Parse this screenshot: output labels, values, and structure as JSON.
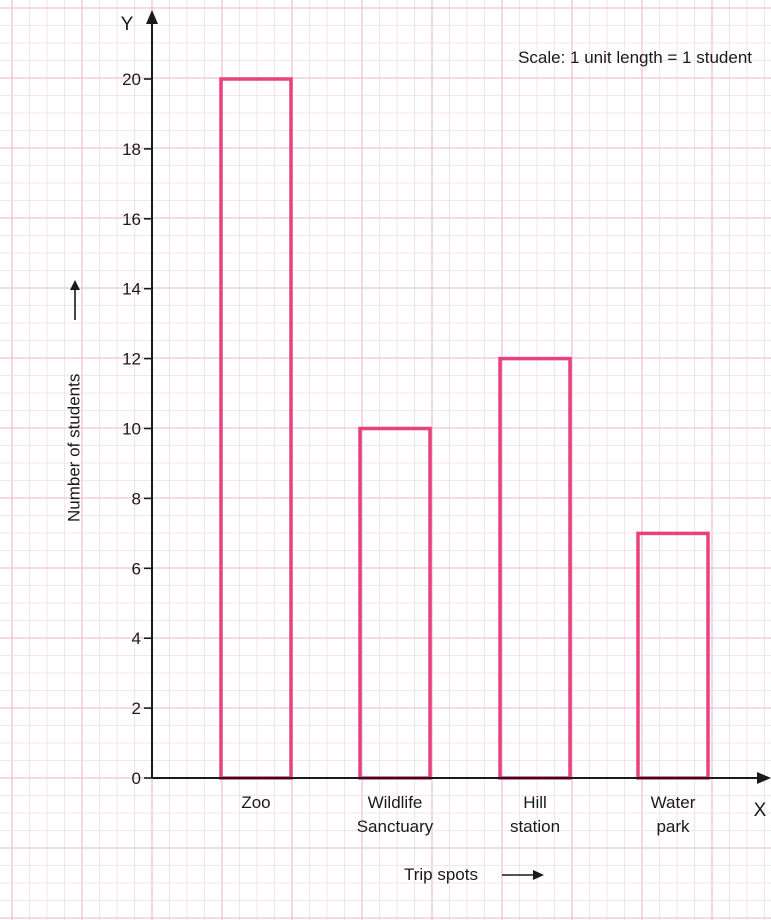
{
  "chart_data": {
    "type": "bar",
    "categories": [
      [
        "Zoo"
      ],
      [
        "Wildlife",
        "Sanctuary"
      ],
      [
        "Hill",
        "station"
      ],
      [
        "Water",
        "park"
      ]
    ],
    "values": [
      20,
      10,
      12,
      7
    ],
    "ylim": [
      0,
      20
    ],
    "yticks": [
      0,
      2,
      4,
      6,
      8,
      10,
      12,
      14,
      16,
      18,
      20
    ],
    "y_axis_letter": "Y",
    "x_axis_letter": "X",
    "ylabel": "Number of students",
    "xlabel": "Trip spots",
    "scale_note": "Scale: 1 unit length = 1 student",
    "grid": true,
    "bar_style": "outline"
  },
  "colors": {
    "bar_outline": "#e8417f",
    "grid_minor": "#f6dbe5",
    "grid_major": "#eab9cb",
    "axis": "#1a1a1a"
  }
}
